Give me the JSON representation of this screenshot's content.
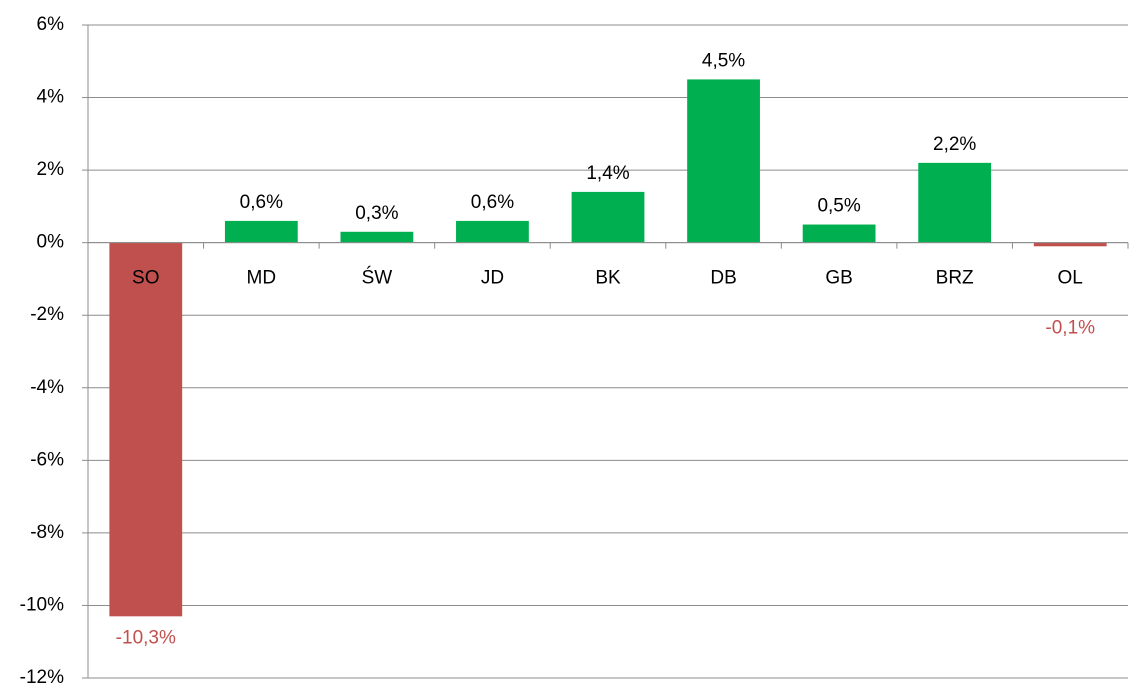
{
  "chart_data": {
    "type": "bar",
    "categories": [
      "SO",
      "MD",
      "ŚW",
      "JD",
      "BK",
      "DB",
      "GB",
      "BRZ",
      "OL"
    ],
    "values": [
      -10.3,
      0.6,
      0.3,
      0.6,
      1.4,
      4.5,
      0.5,
      2.2,
      -0.1
    ],
    "value_labels": [
      "-10,3%",
      "0,6%",
      "0,3%",
      "0,6%",
      "1,4%",
      "4,5%",
      "0,5%",
      "2,2%",
      "-0,1%"
    ],
    "colors": [
      "#c0504d",
      "#00b050",
      "#00b050",
      "#00b050",
      "#00b050",
      "#00b050",
      "#00b050",
      "#00b050",
      "#c0504d"
    ],
    "label_colors": [
      "#c0504d",
      "#000000",
      "#000000",
      "#000000",
      "#000000",
      "#000000",
      "#000000",
      "#000000",
      "#c0504d"
    ],
    "ylim": [
      -12,
      6
    ],
    "yticks": [
      {
        "value": -12,
        "label": "-12%"
      },
      {
        "value": -10,
        "label": "-10%"
      },
      {
        "value": -8,
        "label": "-8%"
      },
      {
        "value": -6,
        "label": "-6%"
      },
      {
        "value": -4,
        "label": "-4%"
      },
      {
        "value": -2,
        "label": "-2%"
      },
      {
        "value": 0,
        "label": "0%"
      },
      {
        "value": 2,
        "label": "2%"
      },
      {
        "value": 4,
        "label": "4%"
      },
      {
        "value": 6,
        "label": "6%"
      }
    ],
    "grid": true
  }
}
